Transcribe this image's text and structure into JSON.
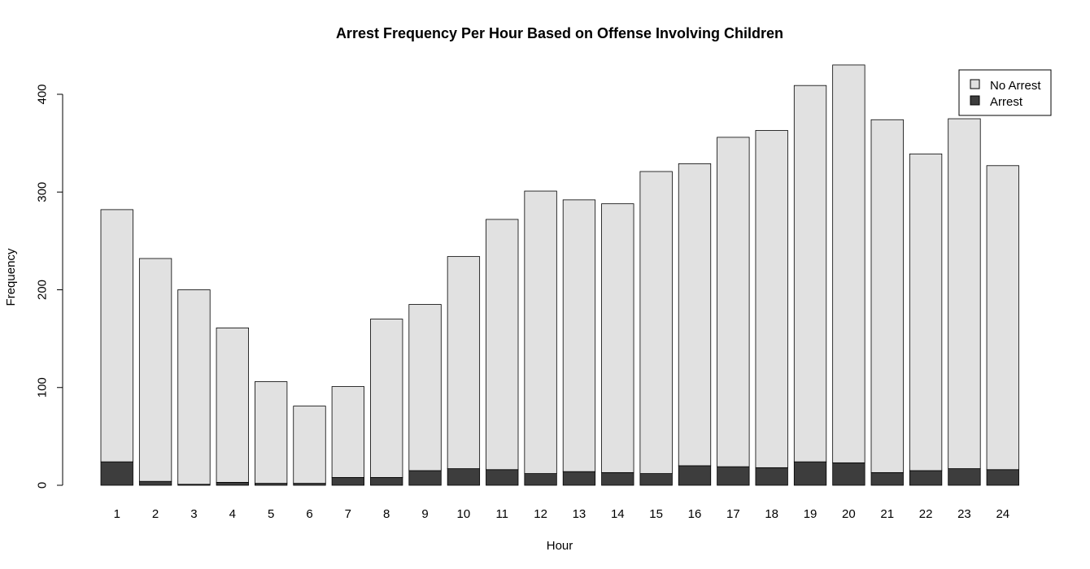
{
  "chart_data": {
    "type": "bar",
    "stacked": true,
    "title": "Arrest Frequency Per Hour Based on Offense Involving Children",
    "xlabel": "Hour",
    "ylabel": "Frequency",
    "categories": [
      "1",
      "2",
      "3",
      "4",
      "5",
      "6",
      "7",
      "8",
      "9",
      "10",
      "11",
      "12",
      "13",
      "14",
      "15",
      "16",
      "17",
      "18",
      "19",
      "20",
      "21",
      "22",
      "23",
      "24"
    ],
    "ylim": [
      0,
      400
    ],
    "yticks": [
      0,
      100,
      200,
      300,
      400
    ],
    "series": [
      {
        "name": "Arrest",
        "color": "#3d3d3d",
        "values": [
          24,
          4,
          1,
          3,
          2,
          2,
          8,
          8,
          15,
          17,
          16,
          12,
          14,
          13,
          12,
          20,
          19,
          18,
          24,
          23,
          13,
          15,
          17,
          16
        ]
      },
      {
        "name": "No Arrest",
        "color": "#e1e1e1",
        "values": [
          258,
          228,
          199,
          158,
          104,
          79,
          93,
          162,
          170,
          217,
          256,
          289,
          278,
          275,
          309,
          309,
          337,
          345,
          385,
          407,
          361,
          324,
          358,
          311
        ]
      }
    ],
    "legend": {
      "position": "top-right",
      "entries": [
        "No Arrest",
        "Arrest"
      ]
    },
    "grid": false
  }
}
